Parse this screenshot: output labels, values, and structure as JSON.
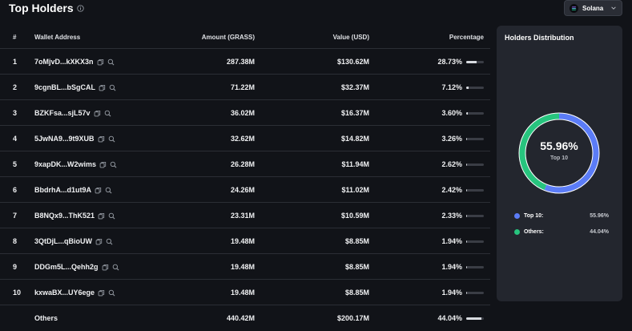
{
  "header": {
    "title": "Top Holders",
    "chain": "Solana"
  },
  "table": {
    "columns": [
      "#",
      "Wallet Address",
      "Amount (GRASS)",
      "Value (USD)",
      "Percentage"
    ],
    "rows": [
      {
        "rank": "1",
        "address": "7oMjvD...kXKX3n",
        "amount": "287.38M",
        "value": "$130.62M",
        "percentage": "28.73%",
        "share": 0.2873
      },
      {
        "rank": "2",
        "address": "9cgnBL...bSgCAL",
        "amount": "71.22M",
        "value": "$32.37M",
        "percentage": "7.12%",
        "share": 0.0712
      },
      {
        "rank": "3",
        "address": "BZKFsa...sjL57v",
        "amount": "36.02M",
        "value": "$16.37M",
        "percentage": "3.60%",
        "share": 0.036
      },
      {
        "rank": "4",
        "address": "5JwNA9...9t9XUB",
        "amount": "32.62M",
        "value": "$14.82M",
        "percentage": "3.26%",
        "share": 0.0326
      },
      {
        "rank": "5",
        "address": "9xapDK...W2wims",
        "amount": "26.28M",
        "value": "$11.94M",
        "percentage": "2.62%",
        "share": 0.0262
      },
      {
        "rank": "6",
        "address": "BbdrhA...d1ut9A",
        "amount": "24.26M",
        "value": "$11.02M",
        "percentage": "2.42%",
        "share": 0.0242
      },
      {
        "rank": "7",
        "address": "B8NQx9...ThK521",
        "amount": "23.31M",
        "value": "$10.59M",
        "percentage": "2.33%",
        "share": 0.0233
      },
      {
        "rank": "8",
        "address": "3QtDjL...qBioUW",
        "amount": "19.48M",
        "value": "$8.85M",
        "percentage": "1.94%",
        "share": 0.0194
      },
      {
        "rank": "9",
        "address": "DDGm5L...Qehh2g",
        "amount": "19.48M",
        "value": "$8.85M",
        "percentage": "1.94%",
        "share": 0.0194
      },
      {
        "rank": "10",
        "address": "kxwaBX...UY6ege",
        "amount": "19.48M",
        "value": "$8.85M",
        "percentage": "1.94%",
        "share": 0.0194
      }
    ],
    "others": {
      "rank": "",
      "address": "Others",
      "amount": "440.42M",
      "value": "$200.17M",
      "percentage": "44.04%",
      "share": 0.4404
    }
  },
  "distribution": {
    "title": "Holders Distribution",
    "center_value": "55.96%",
    "center_label": "Top 10",
    "legend": [
      {
        "label": "Top 10:",
        "value": "55.96%",
        "color": "#5b7cf7",
        "fraction": 0.5596
      },
      {
        "label": "Others:",
        "value": "44.04%",
        "color": "#27c47e",
        "fraction": 0.4404
      }
    ]
  },
  "icons": {
    "info": "info-icon",
    "chain": "solana-icon",
    "dropdown": "chevron-down-icon",
    "copy": "copy-icon",
    "search": "search-icon"
  }
}
